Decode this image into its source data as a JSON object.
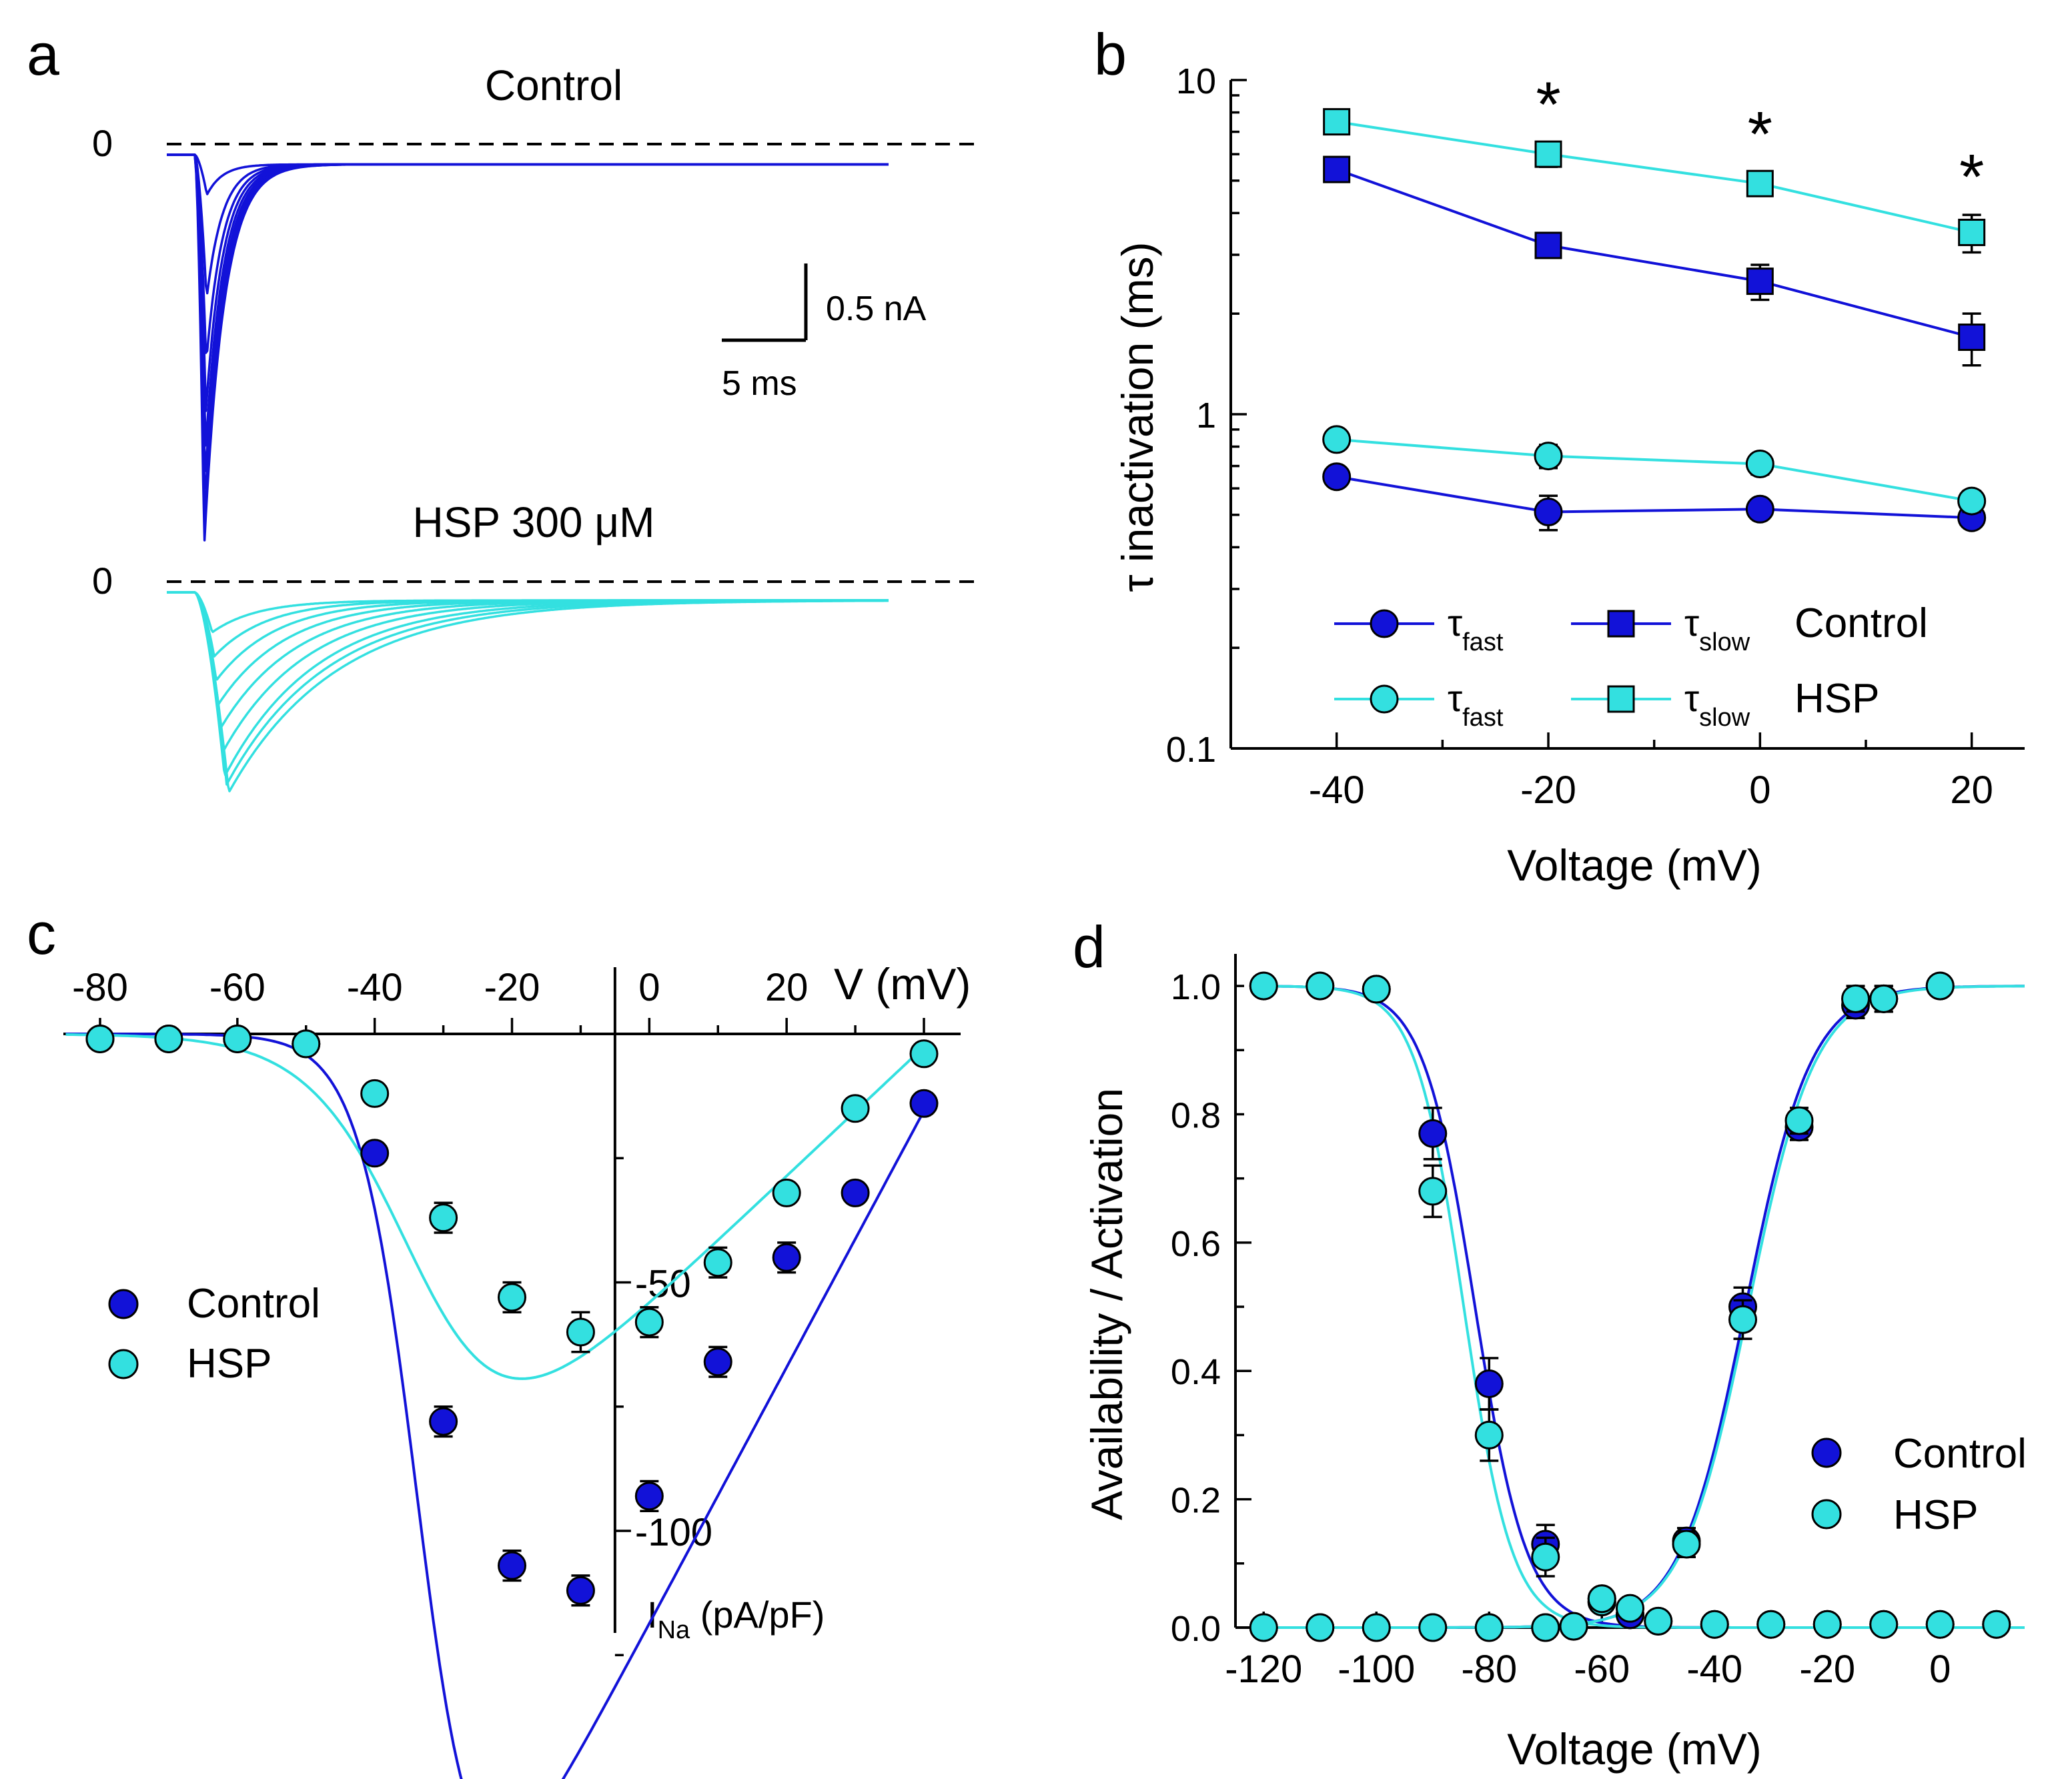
{
  "colors": {
    "control": "#1212d8",
    "hsp": "#33e0e0",
    "axis": "#000000"
  },
  "chart_data": [
    {
      "panel": "a",
      "type": "line",
      "title_control": "Control",
      "title_hsp": "HSP 300 μM",
      "zero_label": "0",
      "scale_current": "0.5 nA",
      "scale_time": "5 ms",
      "series": [
        {
          "name": "Control",
          "peaks_nA": [
            -0.25,
            -0.9,
            -1.3,
            -1.6,
            -1.85,
            -2.05,
            -2.2,
            -2.3,
            -2.45
          ]
        },
        {
          "name": "HSP 300 μM",
          "peaks_nA": [
            -0.25,
            -0.4,
            -0.55,
            -0.7,
            -0.85,
            -1.0,
            -1.15,
            -1.2,
            -1.25
          ]
        }
      ]
    },
    {
      "panel": "b",
      "type": "line",
      "yscale": "log",
      "x": [
        -40,
        -20,
        0,
        20
      ],
      "xlabel": "Voltage (mV)",
      "ylabel": "τ inactivation (ms)",
      "xticks": [
        "-40",
        "-20",
        "0",
        "20"
      ],
      "yticks": [
        "0.1",
        "1",
        "10"
      ],
      "ylim": [
        0.1,
        10
      ],
      "significance": [
        "",
        "*",
        "*",
        "*"
      ],
      "legend": {
        "tau": "τ",
        "fast": "fast",
        "slow": "slow",
        "control": "Control",
        "hsp": "HSP"
      },
      "series": [
        {
          "name": "Control τslow",
          "values": [
            5.4,
            3.2,
            2.5,
            1.7
          ],
          "err": [
            0.3,
            0.25,
            0.3,
            0.3
          ]
        },
        {
          "name": "HSP τslow",
          "values": [
            7.5,
            6.0,
            4.9,
            3.5
          ],
          "err": [
            0.5,
            0.5,
            0.4,
            0.45
          ]
        },
        {
          "name": "Control τfast",
          "values": [
            0.65,
            0.51,
            0.52,
            0.49
          ],
          "err": [
            0.03,
            0.06,
            0.03,
            0.03
          ]
        },
        {
          "name": "HSP τfast",
          "values": [
            0.84,
            0.75,
            0.71,
            0.55
          ],
          "err": [
            0.04,
            0.06,
            0.05,
            0.04
          ]
        }
      ]
    },
    {
      "panel": "c",
      "type": "scatter",
      "x": [
        -80,
        -70,
        -60,
        -50,
        -40,
        -30,
        -20,
        -10,
        0,
        10,
        20,
        30,
        40
      ],
      "xlabel": "V (mV)",
      "ylabel": "I",
      "ylabel_sub": "Na",
      "ylabel_unit": " (pA/pF)",
      "xticks": [
        "-80",
        "-60",
        "-40",
        "-20",
        "0",
        "20"
      ],
      "yticks": [
        "-50",
        "-100"
      ],
      "xlim": [
        -80,
        45
      ],
      "legend": [
        "Control",
        "HSP"
      ],
      "series": [
        {
          "name": "Control",
          "values": [
            -1,
            -1,
            -1,
            -2,
            -24,
            -78,
            -107,
            -112,
            -93,
            -66,
            -45,
            -32,
            -14
          ],
          "err": [
            1,
            1,
            1,
            2,
            2,
            3,
            3,
            3,
            3,
            3,
            3,
            2,
            2
          ]
        },
        {
          "name": "HSP",
          "values": [
            -1,
            -1,
            -1,
            -2,
            -12,
            -37,
            -53,
            -60,
            -58,
            -46,
            -32,
            -15,
            -4
          ],
          "err": [
            1,
            1,
            1,
            2,
            2,
            3,
            3,
            4,
            3,
            3,
            2,
            2,
            2
          ]
        }
      ]
    },
    {
      "panel": "d",
      "type": "scatter",
      "xlabel": "Voltage (mV)",
      "ylabel": "Availability / Activation",
      "xticks": [
        "-120",
        "-100",
        "-80",
        "-60",
        "-40",
        "-20",
        "0"
      ],
      "yticks": [
        "0.0",
        "0.2",
        "0.4",
        "0.6",
        "0.8",
        "1.0"
      ],
      "xlim": [
        -125,
        15
      ],
      "ylim": [
        0,
        1.05
      ],
      "legend": [
        "Control",
        "HSP"
      ],
      "availability": {
        "x": [
          -120,
          -110,
          -100,
          -90,
          -80,
          -70,
          -60,
          -55,
          -50,
          -40,
          -30,
          -20,
          -10,
          0,
          10
        ],
        "control": [
          1.0,
          1.0,
          0.995,
          0.77,
          0.38,
          0.13,
          0.04,
          0.02,
          0.01,
          0.005,
          0.005,
          0.005,
          0.005,
          0.005,
          0.005
        ],
        "hsp": [
          1.0,
          1.0,
          0.995,
          0.68,
          0.3,
          0.11,
          0.04,
          0.02,
          0.01,
          0.005,
          0.005,
          0.005,
          0.005,
          0.005,
          0.005
        ],
        "err": [
          0.01,
          0.01,
          0.01,
          0.04,
          0.04,
          0.03,
          0.01,
          0.01,
          0.01,
          0.01,
          0.01,
          0.01,
          0.01,
          0.01,
          0.01
        ]
      },
      "activation": {
        "x": [
          -120,
          -110,
          -100,
          -90,
          -80,
          -70,
          -65,
          -60,
          -55,
          -45,
          -35,
          -25,
          -15,
          -10,
          0
        ],
        "control": [
          0.0,
          0.0,
          0.0,
          0.0,
          0.0,
          0.0,
          0.002,
          0.045,
          0.02,
          0.135,
          0.5,
          0.78,
          0.97,
          0.98,
          1.0
        ],
        "hsp": [
          0.0,
          0.0,
          0.0,
          0.0,
          0.0,
          0.0,
          0.002,
          0.045,
          0.03,
          0.13,
          0.48,
          0.79,
          0.98,
          0.98,
          1.0
        ],
        "err": [
          0.01,
          0.01,
          0.01,
          0.01,
          0.01,
          0.01,
          0.01,
          0.01,
          0.01,
          0.02,
          0.03,
          0.02,
          0.02,
          0.02,
          0.01
        ]
      }
    }
  ],
  "panel_labels": [
    "a",
    "b",
    "c",
    "d"
  ]
}
